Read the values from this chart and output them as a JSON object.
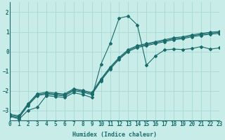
{
  "xlabel": "Humidex (Indice chaleur)",
  "background_color": "#c8ede8",
  "grid_color": "#a5d8d2",
  "line_color": "#1a6b6b",
  "xlim": [
    0,
    23
  ],
  "ylim": [
    -3.5,
    2.5
  ],
  "yticks": [
    -3,
    -2,
    -1,
    0,
    1,
    2
  ],
  "xticks": [
    0,
    1,
    2,
    3,
    4,
    5,
    6,
    7,
    8,
    9,
    10,
    11,
    12,
    13,
    14,
    15,
    16,
    17,
    18,
    19,
    20,
    21,
    22,
    23
  ],
  "x": [
    0,
    1,
    2,
    3,
    4,
    5,
    6,
    7,
    8,
    9,
    10,
    11,
    12,
    13,
    14,
    15,
    16,
    17,
    18,
    19,
    20,
    21,
    22,
    23
  ],
  "series": [
    [
      -3.3,
      -3.45,
      -3.0,
      -2.85,
      -2.25,
      -2.3,
      -2.35,
      -2.1,
      -2.2,
      -2.35,
      -0.65,
      0.4,
      1.7,
      1.8,
      1.35,
      -0.7,
      -0.22,
      0.08,
      0.12,
      0.1,
      0.15,
      0.25,
      0.12,
      0.18
    ],
    [
      -3.3,
      -3.38,
      -2.75,
      -2.25,
      -2.18,
      -2.22,
      -2.27,
      -2.0,
      -2.08,
      -2.2,
      -1.5,
      -0.9,
      -0.4,
      0.0,
      0.2,
      0.3,
      0.4,
      0.5,
      0.6,
      0.65,
      0.75,
      0.82,
      0.88,
      0.92
    ],
    [
      -3.25,
      -3.33,
      -2.7,
      -2.2,
      -2.13,
      -2.17,
      -2.22,
      -1.95,
      -2.03,
      -2.15,
      -1.45,
      -0.85,
      -0.35,
      0.05,
      0.25,
      0.35,
      0.45,
      0.55,
      0.65,
      0.7,
      0.8,
      0.87,
      0.93,
      0.97
    ],
    [
      -3.2,
      -3.28,
      -2.65,
      -2.15,
      -2.08,
      -2.12,
      -2.17,
      -1.9,
      -1.98,
      -2.1,
      -1.4,
      -0.8,
      -0.3,
      0.1,
      0.3,
      0.4,
      0.5,
      0.6,
      0.7,
      0.75,
      0.85,
      0.92,
      0.98,
      1.02
    ]
  ]
}
